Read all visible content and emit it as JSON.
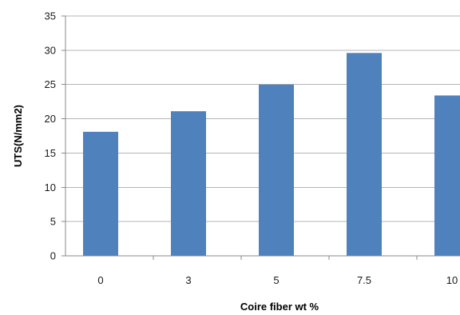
{
  "chart_data": {
    "type": "bar",
    "title": "",
    "xlabel": "Coire fiber wt %",
    "ylabel": "UTS(N/mm2)",
    "categories": [
      "0",
      "3",
      "5",
      "7.5",
      "10"
    ],
    "values": [
      18.1,
      21.1,
      25.0,
      29.6,
      23.4
    ],
    "ylim": [
      0,
      35
    ],
    "yticks": [
      "0",
      "5",
      "10",
      "15",
      "20",
      "25",
      "30",
      "35"
    ],
    "grid": true,
    "legend": "none",
    "bar_color": "#4f81bd"
  }
}
